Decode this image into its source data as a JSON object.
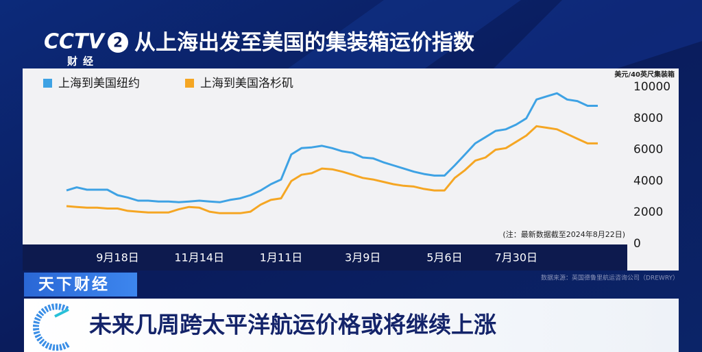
{
  "channel": {
    "name": "CCTV",
    "number": "2",
    "sub": "财经"
  },
  "program": "天下财经",
  "headline": "未来几周跨太平洋航运价格或将继续上涨",
  "chart_data": {
    "type": "line",
    "title": "从上海出发至美国的集装箱运价指数",
    "y_label": "美元/40英尺集装箱",
    "note": "(注：最新数据截至2024年8月22日)",
    "source": "数据来源：英国德鲁里航运咨询公司（DREWRY）",
    "categories": [
      null,
      null,
      null,
      null,
      null,
      "9月18日",
      null,
      null,
      null,
      null,
      null,
      null,
      null,
      "11月14日",
      null,
      null,
      null,
      null,
      null,
      null,
      null,
      "1月11日",
      null,
      null,
      null,
      null,
      null,
      null,
      null,
      "3月9日",
      null,
      null,
      null,
      null,
      null,
      null,
      null,
      "5月6日",
      null,
      null,
      null,
      null,
      null,
      null,
      "7月30日",
      null,
      null,
      null,
      null,
      null,
      null,
      null,
      null
    ],
    "series": [
      {
        "name": "上海到美国纽约",
        "color": "#3ea2e4",
        "values": [
          3400,
          3600,
          3450,
          3450,
          3450,
          3100,
          2950,
          2750,
          2750,
          2700,
          2700,
          2650,
          2700,
          2750,
          2700,
          2650,
          2800,
          2900,
          3100,
          3400,
          3800,
          4100,
          5700,
          6100,
          6150,
          6250,
          6100,
          5900,
          5800,
          5500,
          5450,
          5200,
          5000,
          4800,
          4600,
          4450,
          4350,
          4350,
          5000,
          5700,
          6400,
          6800,
          7200,
          7300,
          7600,
          8000,
          9200,
          9400,
          9600,
          9200,
          9100,
          8800,
          8800
        ]
      },
      {
        "name": "上海到美国洛杉矶",
        "color": "#f5a623",
        "values": [
          2400,
          2350,
          2300,
          2300,
          2250,
          2250,
          2100,
          2050,
          2000,
          2000,
          2000,
          2200,
          2350,
          2300,
          2050,
          1950,
          1950,
          1950,
          2050,
          2500,
          2800,
          2900,
          4000,
          4400,
          4500,
          4800,
          4750,
          4600,
          4400,
          4200,
          4100,
          3950,
          3800,
          3700,
          3650,
          3500,
          3400,
          3400,
          4200,
          4700,
          5300,
          5500,
          6000,
          6100,
          6500,
          6900,
          7500,
          7400,
          7300,
          7000,
          6700,
          6400,
          6400
        ]
      }
    ],
    "ylim": [
      0,
      10000
    ],
    "yticks": [
      0,
      2000,
      4000,
      6000,
      8000,
      10000
    ],
    "grid": false,
    "legend": "top-left"
  }
}
